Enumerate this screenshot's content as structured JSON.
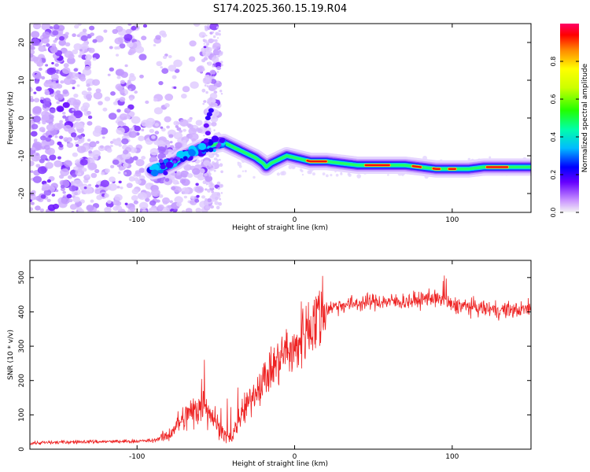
{
  "chart_data": [
    {
      "type": "heatmap",
      "title": "S174.2025.360.15.19.R04",
      "xlabel": "Height of straight line (km)",
      "ylabel": "Frequency (Hz)",
      "xlim": [
        -168,
        150
      ],
      "ylim": [
        -25,
        25
      ],
      "xticks": [
        -100,
        0,
        100
      ],
      "yticks": [
        -20,
        -10,
        0,
        10,
        20
      ],
      "colorbar": {
        "label": "Normalized spectral amplitude",
        "range": [
          0,
          1
        ],
        "ticks": [
          "0.0",
          "0.2",
          "0.4",
          "0.6",
          "0.8"
        ]
      },
      "ridge": {
        "name": "dominant frequency",
        "x": [
          -90,
          -85,
          -80,
          -75,
          -70,
          -65,
          -60,
          -55,
          -50,
          -45,
          -40,
          -35,
          -30,
          -25,
          -20,
          -18,
          -15,
          -10,
          -5,
          0,
          5,
          10,
          20,
          30,
          40,
          50,
          60,
          70,
          80,
          90,
          100,
          110,
          120,
          130,
          140,
          150
        ],
        "y": [
          -14,
          -13.5,
          -12.5,
          -11.5,
          -10,
          -9,
          -8,
          -7.5,
          -7,
          -6.5,
          -7.5,
          -8.5,
          -9.5,
          -10.5,
          -12,
          -13,
          -12,
          -11,
          -10,
          -10.5,
          -11,
          -11.5,
          -11.5,
          -12,
          -12.5,
          -12.5,
          -12.5,
          -12.5,
          -13,
          -13.5,
          -13.5,
          -13.5,
          -13,
          -13,
          -13,
          -13
        ]
      }
    },
    {
      "type": "line",
      "xlabel": "Height of straight line (km)",
      "ylabel": "SNR (10 * v/v)",
      "xlim": [
        -168,
        150
      ],
      "ylim": [
        0,
        550
      ],
      "xticks": [
        -100,
        0,
        100
      ],
      "yticks": [
        0,
        100,
        200,
        300,
        400,
        500
      ],
      "series": [
        {
          "name": "SNR",
          "color": "#ee2222",
          "x": [
            -168,
            -150,
            -130,
            -110,
            -90,
            -80,
            -75,
            -70,
            -65,
            -60,
            -57,
            -55,
            -50,
            -45,
            -40,
            -35,
            -30,
            -25,
            -20,
            -15,
            -10,
            -5,
            0,
            5,
            10,
            15,
            20,
            25,
            30,
            40,
            50,
            60,
            70,
            80,
            90,
            95,
            100,
            110,
            120,
            130,
            140,
            150
          ],
          "y": [
            18,
            20,
            22,
            22,
            25,
            40,
            70,
            90,
            110,
            130,
            150,
            120,
            80,
            40,
            30,
            90,
            130,
            170,
            200,
            230,
            260,
            290,
            280,
            340,
            360,
            390,
            410,
            415,
            420,
            425,
            430,
            430,
            430,
            435,
            440,
            430,
            420,
            415,
            410,
            405,
            405,
            410
          ]
        }
      ]
    }
  ]
}
